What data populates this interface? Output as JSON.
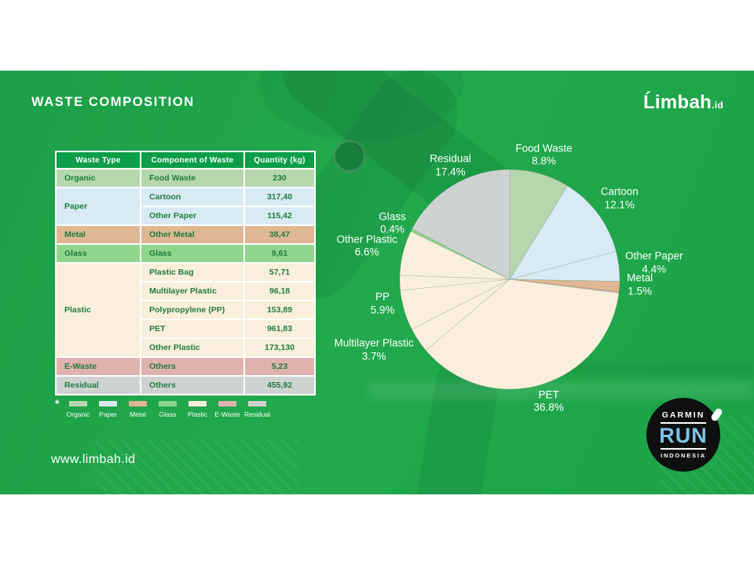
{
  "slide": {
    "title": "WASTE COMPOSITION",
    "brand": {
      "name": "Ĺimbah",
      "suffix": ".id"
    },
    "website": "www.limbah.id",
    "footnote_marker": "*"
  },
  "badge": {
    "top": "GARMIN",
    "main": "RUN",
    "bottom": "INDONESIA"
  },
  "palette": {
    "organic": "#b5d7ae",
    "paper": "#d8eaf4",
    "metal": "#dfb794",
    "glass": "#90d58d",
    "plastic": "#faefdc",
    "ewaste": "#e0b2ae",
    "residual": "#ced3d2"
  },
  "table": {
    "headers": [
      "Waste Type",
      "Component of Waste",
      "Quantity (kg)"
    ],
    "groups": [
      {
        "type": "Organic",
        "color_key": "organic",
        "rows": [
          [
            "Food Waste",
            "230"
          ]
        ]
      },
      {
        "type": "Paper",
        "color_key": "paper",
        "rows": [
          [
            "Cartoon",
            "317,40"
          ],
          [
            "Other Paper",
            "115,42"
          ]
        ]
      },
      {
        "type": "Metal",
        "color_key": "metal",
        "rows": [
          [
            "Other Metal",
            "38,47"
          ]
        ]
      },
      {
        "type": "Glass",
        "color_key": "glass",
        "rows": [
          [
            "Glass",
            "9,61"
          ]
        ]
      },
      {
        "type": "Plastic",
        "color_key": "plastic",
        "rows": [
          [
            "Plastic Bag",
            "57,71"
          ],
          [
            "Multilayer Plastic",
            "96,18"
          ],
          [
            "Polypropylene (PP)",
            "153,89"
          ],
          [
            "PET",
            "961,83"
          ],
          [
            "Other Plastic",
            "173,130"
          ]
        ]
      },
      {
        "type": "E-Waste",
        "color_key": "ewaste",
        "rows": [
          [
            "Others",
            "5,23"
          ]
        ]
      },
      {
        "type": "Residual",
        "color_key": "residual",
        "rows": [
          [
            "Others",
            "455,92"
          ]
        ]
      }
    ]
  },
  "legend": {
    "items": [
      {
        "label": "Organic",
        "color_key": "organic"
      },
      {
        "label": "Paper",
        "color_key": "paper"
      },
      {
        "label": "Metal",
        "color_key": "metal"
      },
      {
        "label": "Glass",
        "color_key": "glass"
      },
      {
        "label": "Plastic",
        "color_key": "plastic"
      },
      {
        "label": "E-Waste",
        "color_key": "ewaste"
      },
      {
        "label": "Residual",
        "color_key": "residual"
      }
    ]
  },
  "chart_data": {
    "type": "pie",
    "unit": "%",
    "start_angle_deg": 0,
    "direction": "clockwise",
    "slices": [
      {
        "label": "Food Waste",
        "pct": 8.8,
        "color_key": "organic",
        "labeled": true
      },
      {
        "label": "Cartoon",
        "pct": 12.1,
        "color_key": "paper",
        "labeled": true
      },
      {
        "label": "Other Paper",
        "pct": 4.4,
        "color_key": "paper",
        "labeled": true
      },
      {
        "label": "Metal",
        "pct": 1.5,
        "color_key": "metal",
        "labeled": true
      },
      {
        "label": "E-Waste",
        "pct": 0.2,
        "color_key": "ewaste",
        "labeled": false
      },
      {
        "label": "PET",
        "pct": 36.8,
        "color_key": "plastic",
        "labeled": true
      },
      {
        "label": "Multilayer Plastic",
        "pct": 3.7,
        "color_key": "plastic",
        "labeled": true
      },
      {
        "label": "PP",
        "pct": 5.9,
        "color_key": "plastic",
        "labeled": true
      },
      {
        "label": "Plastic Bag",
        "pct": 2.2,
        "color_key": "plastic",
        "labeled": false
      },
      {
        "label": "Other Plastic",
        "pct": 6.6,
        "color_key": "plastic",
        "labeled": true
      },
      {
        "label": "Glass",
        "pct": 0.4,
        "color_key": "glass",
        "labeled": true
      },
      {
        "label": "Residual",
        "pct": 17.4,
        "color_key": "residual",
        "labeled": true
      }
    ]
  }
}
